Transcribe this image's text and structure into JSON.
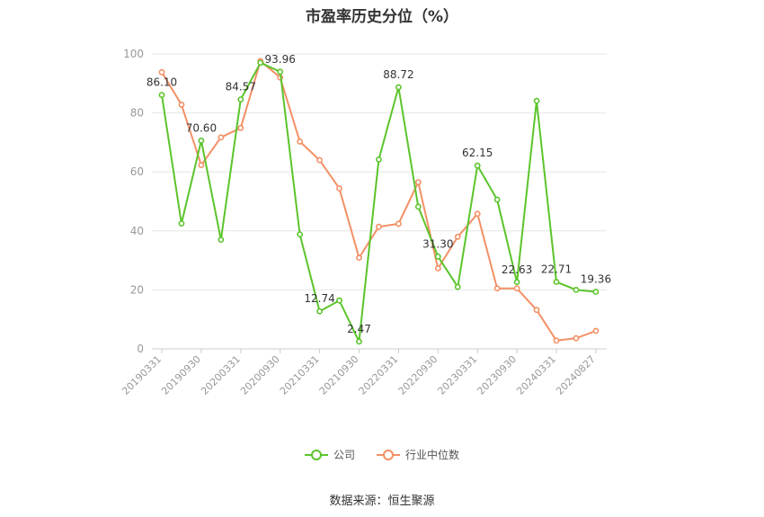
{
  "title": "市盈率历史分位（%）",
  "source": "数据来源：恒生聚源",
  "colors": {
    "company": "#5cc42b",
    "industry": "#f39065",
    "grid": "#e6e6e6",
    "axis": "#999999"
  },
  "chart_data": {
    "type": "line",
    "ylim": [
      0,
      100
    ],
    "yticks": [
      0,
      20,
      40,
      60,
      80,
      100
    ],
    "x": [
      "20190331",
      "20190630",
      "20190930",
      "20191231",
      "20200331",
      "20200630",
      "20200930",
      "20201231",
      "20210331",
      "20210630",
      "20210930",
      "20211231",
      "20220331",
      "20220630",
      "20220930",
      "20221231",
      "20230331",
      "20230630",
      "20230930",
      "20231231",
      "20240331",
      "20240630",
      "20240827"
    ],
    "xtick_labels": [
      "20190331",
      "20190930",
      "20200331",
      "20200930",
      "20210331",
      "20210930",
      "20220331",
      "20220930",
      "20230331",
      "20230930",
      "20240331",
      "20240827"
    ],
    "series": [
      {
        "name": "公司",
        "values": [
          86.1,
          42.5,
          70.6,
          37.0,
          84.57,
          97.0,
          93.96,
          38.8,
          12.74,
          16.4,
          2.47,
          64.2,
          88.72,
          48.2,
          31.3,
          21.0,
          62.15,
          50.6,
          22.63,
          84.1,
          22.71,
          20.0,
          19.36
        ],
        "labels": [
          "86.10",
          "",
          "70.60",
          "",
          "84.57",
          "",
          "93.96",
          "",
          "12.74",
          "",
          "2.47",
          "",
          "88.72",
          "",
          "31.30",
          "",
          "62.15",
          "",
          "22.63",
          "",
          "22.71",
          "",
          "19.36"
        ]
      },
      {
        "name": "行业中位数",
        "values": [
          93.8,
          82.8,
          62.3,
          71.7,
          74.9,
          97.6,
          92.0,
          70.3,
          64.0,
          54.4,
          30.9,
          41.4,
          42.4,
          56.5,
          27.3,
          38.0,
          45.8,
          20.5,
          20.5,
          13.2,
          2.8,
          3.6,
          6.1
        ]
      }
    ],
    "legend": "bottom-center",
    "grid": true
  }
}
